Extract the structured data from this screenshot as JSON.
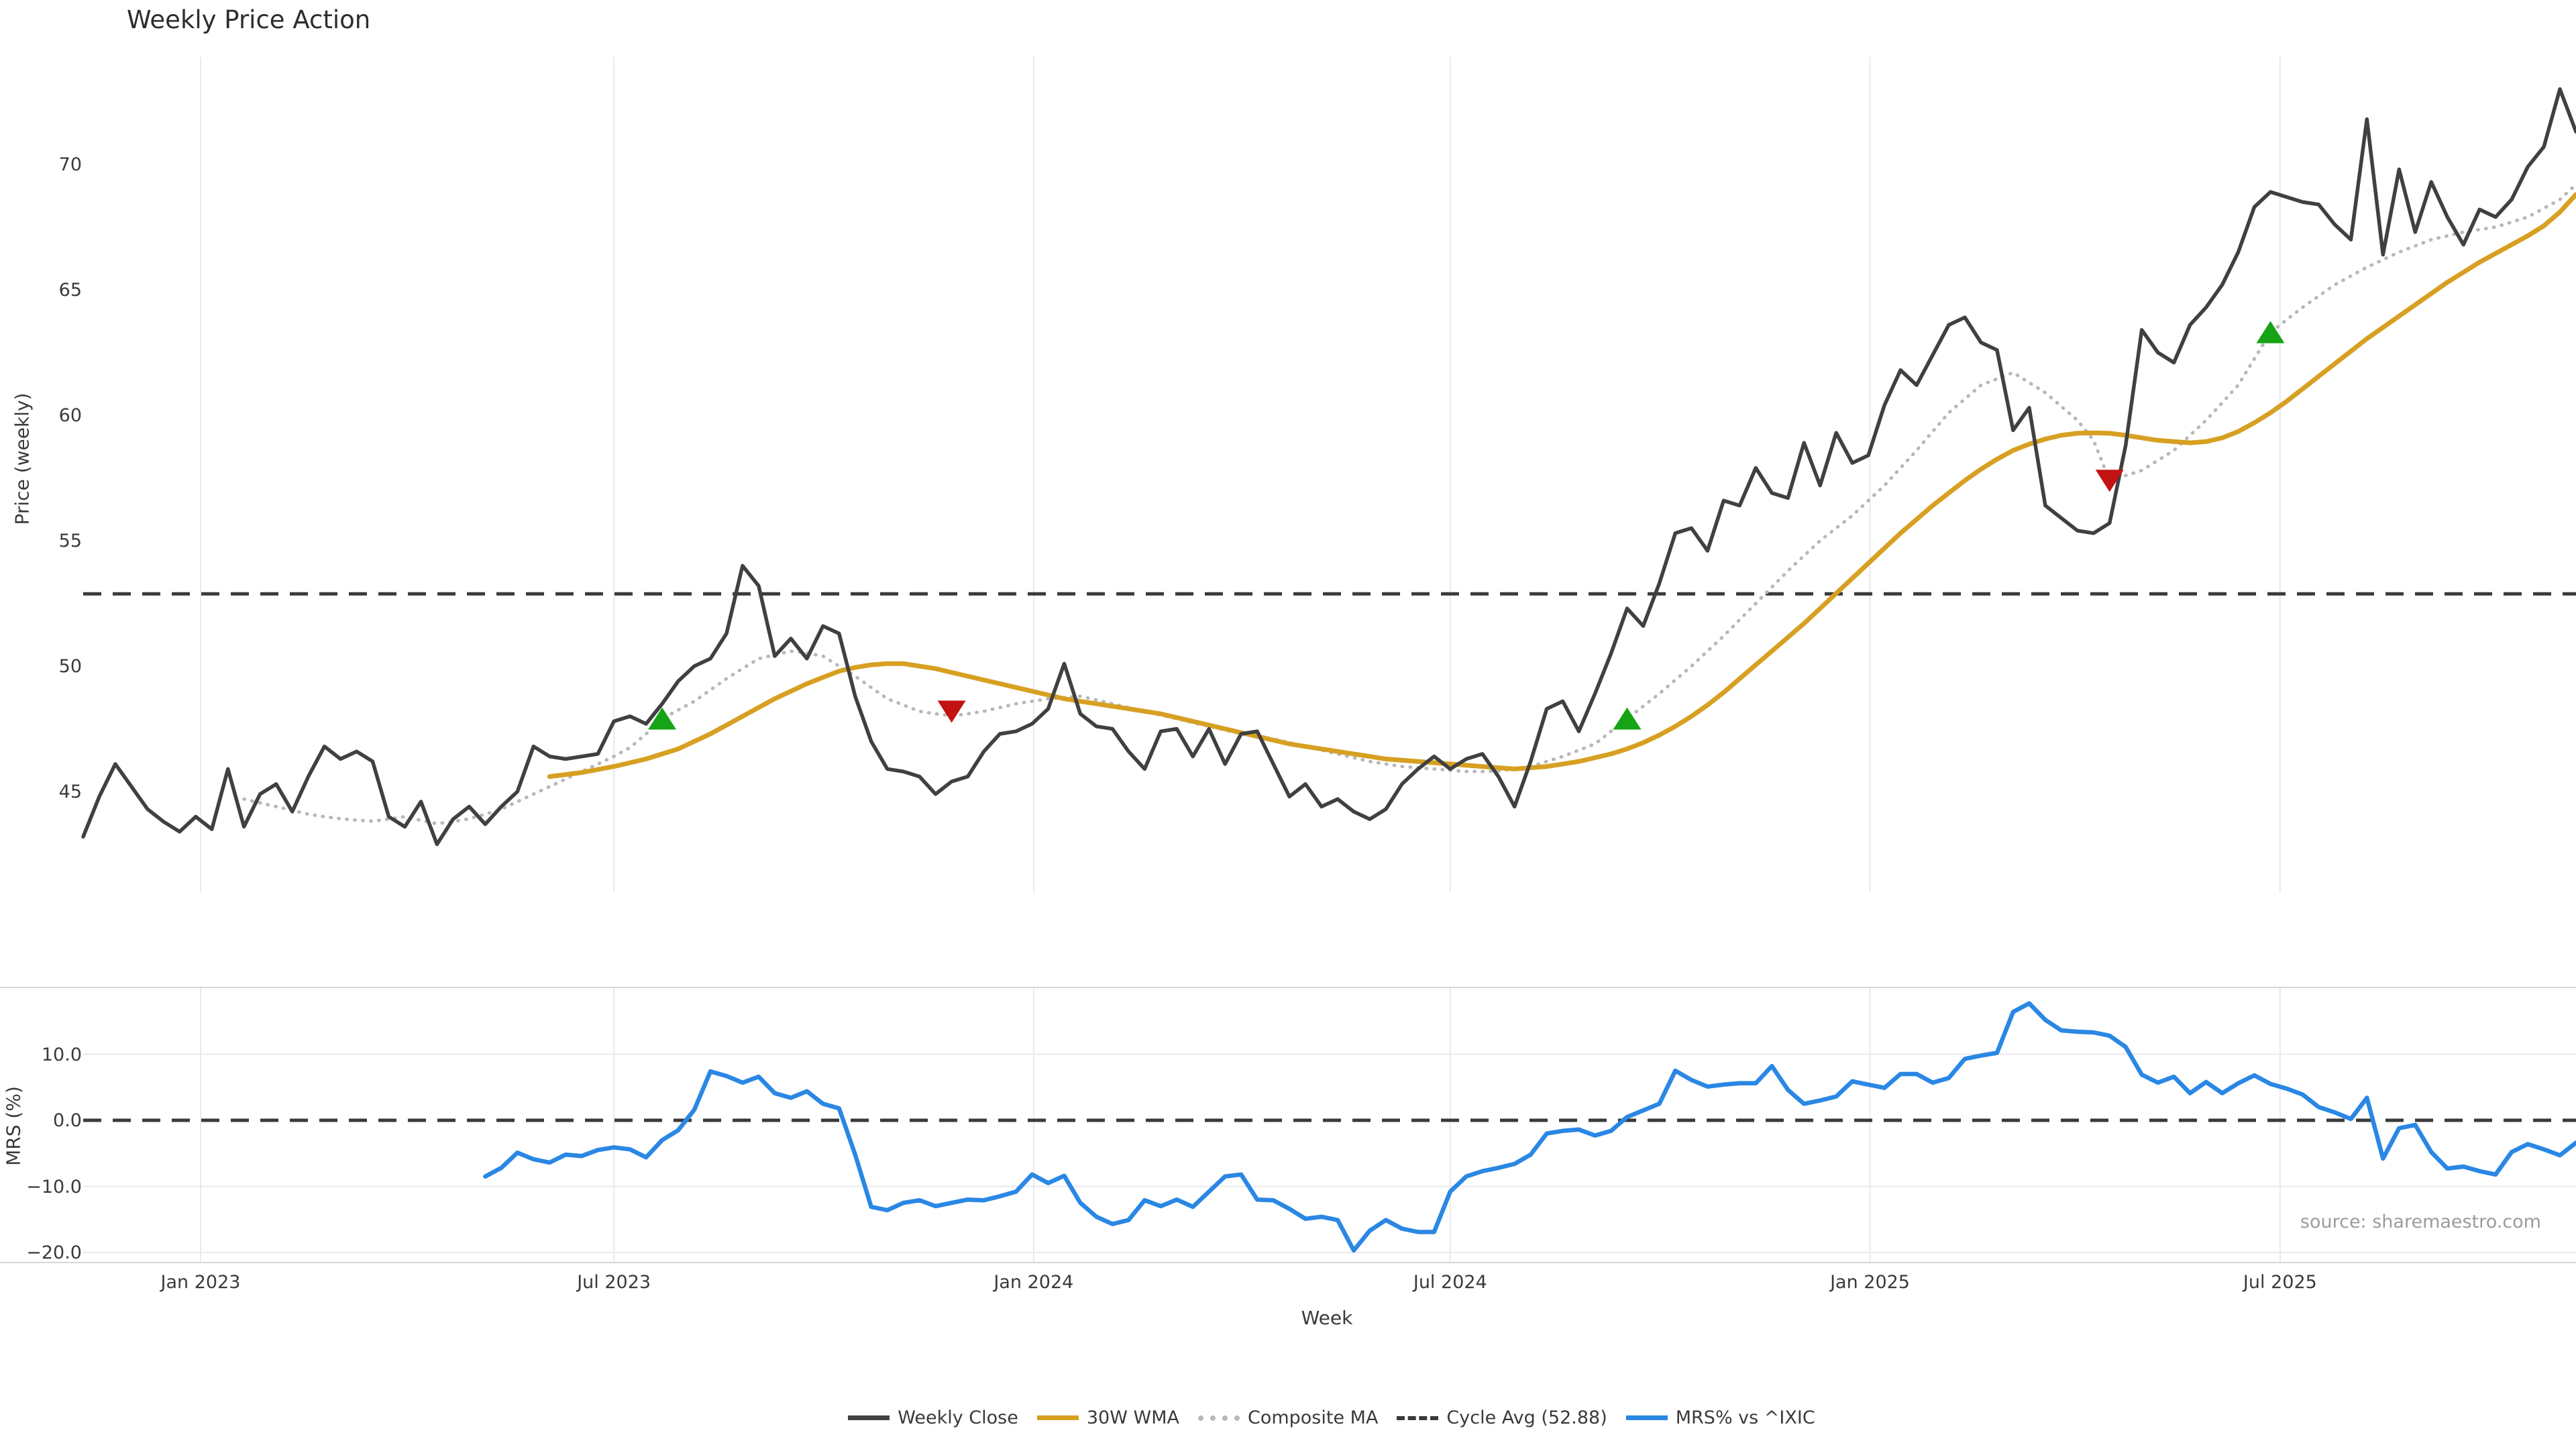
{
  "title": "Weekly Price Action",
  "source": "source: sharemaestro.com",
  "colors": {
    "close": "#404040",
    "wma": "#d7a022",
    "composite": "#b8b8b8",
    "cycle_avg": "#3a3a3a",
    "mrs": "#2a87e4",
    "buy_marker": "#16a316",
    "sell_marker": "#c31212",
    "grid": "#e9e9ef",
    "spine": "#d5d5dc",
    "background": "#ffffff"
  },
  "legend": {
    "items": [
      {
        "label": "Weekly Close",
        "color": "#404040",
        "style": "solid"
      },
      {
        "label": "30W WMA",
        "color": "#d7a022",
        "style": "solid"
      },
      {
        "label": "Composite MA",
        "color": "#b8b8b8",
        "style": "dotted"
      },
      {
        "label": "Cycle Avg (52.88)",
        "color": "#3a3a3a",
        "style": "dashed"
      },
      {
        "label": "MRS% vs ^IXIC",
        "color": "#2a87e4",
        "style": "solid"
      }
    ]
  },
  "chart_data": [
    {
      "type": "line",
      "panel": "price",
      "title": "Weekly Price Action",
      "xlabel": "Week",
      "ylabel": "Price (weekly)",
      "x_unit": "weekly index, week 0 = first plotted week (mid-Nov 2022)",
      "x_ticks": [
        {
          "label": "Jan 2023",
          "i": 7.3
        },
        {
          "label": "Jul 2023",
          "i": 33.0
        },
        {
          "label": "Jan 2024",
          "i": 59.1
        },
        {
          "label": "Jul 2024",
          "i": 85.0
        },
        {
          "label": "Jan 2025",
          "i": 111.1
        },
        {
          "label": "Jul 2025",
          "i": 136.6
        }
      ],
      "y_ticks": [
        45,
        50,
        55,
        60,
        65,
        70
      ],
      "ylim": [
        41.0,
        74.3
      ],
      "grid": "vertical gridlines at each Jan/Jul",
      "legend_position": "bottom center, shared",
      "cycle_avg": 52.88,
      "series": [
        {
          "name": "Weekly Close",
          "style": "solid",
          "color": "#404040",
          "start": 0,
          "values": [
            43.2,
            44.8,
            46.1,
            45.2,
            44.3,
            43.8,
            43.4,
            44.0,
            43.5,
            45.9,
            43.6,
            44.9,
            45.3,
            44.2,
            45.6,
            46.8,
            46.3,
            46.6,
            46.2,
            44.0,
            43.6,
            44.6,
            42.9,
            43.9,
            44.4,
            43.7,
            44.4,
            45.0,
            46.8,
            46.4,
            46.3,
            46.4,
            46.5,
            47.8,
            48.0,
            47.7,
            48.5,
            49.4,
            50.0,
            50.3,
            51.3,
            54.0,
            53.2,
            50.4,
            51.1,
            50.3,
            51.6,
            51.3,
            48.8,
            47.0,
            45.9,
            45.8,
            45.6,
            44.9,
            45.4,
            45.6,
            46.6,
            47.3,
            47.4,
            47.7,
            48.3,
            50.1,
            48.1,
            47.6,
            47.5,
            46.6,
            45.9,
            47.4,
            47.5,
            46.4,
            47.5,
            46.1,
            47.3,
            47.4,
            46.1,
            44.8,
            45.3,
            44.4,
            44.7,
            44.2,
            43.9,
            44.3,
            45.3,
            45.9,
            46.4,
            45.9,
            46.3,
            46.5,
            45.6,
            44.4,
            46.2,
            48.3,
            48.6,
            47.4,
            48.9,
            50.5,
            52.3,
            51.6,
            53.3,
            55.3,
            55.5,
            54.6,
            56.6,
            56.4,
            57.9,
            56.9,
            56.7,
            58.9,
            57.2,
            59.3,
            58.1,
            58.4,
            60.4,
            61.8,
            61.2,
            62.4,
            63.6,
            63.9,
            62.9,
            62.6,
            59.4,
            60.3,
            56.4,
            55.9,
            55.4,
            55.3,
            55.7,
            58.8,
            63.4,
            62.5,
            62.1,
            63.6,
            64.3,
            65.2,
            66.5,
            68.3,
            68.9,
            68.7,
            68.5,
            68.4,
            67.6,
            67.0,
            71.8,
            66.4,
            69.8,
            67.3,
            69.3,
            67.9,
            66.8,
            68.2,
            67.9,
            68.6,
            69.9,
            70.7,
            73.0,
            71.3
          ]
        },
        {
          "name": "30W WMA",
          "style": "solid",
          "color": "#d7a022",
          "start": 29,
          "values": [
            45.6,
            45.68,
            45.76,
            45.88,
            46.0,
            46.15,
            46.3,
            46.5,
            46.7,
            47.0,
            47.3,
            47.65,
            48.0,
            48.35,
            48.7,
            49.0,
            49.3,
            49.55,
            49.8,
            49.95,
            50.05,
            50.1,
            50.1,
            50.0,
            49.9,
            49.75,
            49.6,
            49.45,
            49.3,
            49.15,
            49.0,
            48.85,
            48.7,
            48.6,
            48.5,
            48.4,
            48.3,
            48.2,
            48.1,
            47.95,
            47.8,
            47.65,
            47.5,
            47.35,
            47.2,
            47.05,
            46.9,
            46.8,
            46.7,
            46.6,
            46.5,
            46.4,
            46.3,
            46.25,
            46.2,
            46.15,
            46.1,
            46.05,
            46.0,
            45.95,
            45.9,
            45.95,
            46.0,
            46.1,
            46.2,
            46.35,
            46.5,
            46.7,
            46.95,
            47.25,
            47.6,
            48.0,
            48.45,
            48.95,
            49.5,
            50.05,
            50.6,
            51.15,
            51.7,
            52.3,
            52.9,
            53.5,
            54.1,
            54.7,
            55.3,
            55.85,
            56.4,
            56.9,
            57.4,
            57.85,
            58.25,
            58.6,
            58.85,
            59.05,
            59.2,
            59.28,
            59.3,
            59.28,
            59.2,
            59.1,
            59.0,
            58.95,
            58.9,
            58.95,
            59.1,
            59.35,
            59.7,
            60.1,
            60.55,
            61.05,
            61.55,
            62.05,
            62.55,
            63.05,
            63.5,
            63.95,
            64.4,
            64.85,
            65.3,
            65.7,
            66.1,
            66.45,
            66.8,
            67.15,
            67.55,
            68.1,
            68.8
          ]
        },
        {
          "name": "Composite MA",
          "style": "dotted",
          "color": "#b8b8b8",
          "start": 10,
          "values": [
            44.7,
            44.55,
            44.4,
            44.25,
            44.1,
            44.0,
            43.92,
            43.86,
            43.82,
            43.9,
            44.0,
            43.85,
            43.72,
            43.8,
            43.92,
            44.1,
            44.3,
            44.6,
            44.9,
            45.2,
            45.5,
            45.8,
            46.1,
            46.4,
            46.75,
            47.3,
            47.9,
            48.25,
            48.6,
            49.05,
            49.5,
            49.9,
            50.3,
            50.45,
            50.6,
            50.52,
            50.4,
            50.0,
            49.6,
            49.15,
            48.7,
            48.45,
            48.2,
            48.1,
            48.02,
            48.1,
            48.2,
            48.35,
            48.5,
            48.6,
            48.7,
            48.75,
            48.8,
            48.65,
            48.5,
            48.35,
            48.2,
            48.05,
            47.9,
            47.75,
            47.6,
            47.45,
            47.3,
            47.2,
            47.1,
            46.95,
            46.8,
            46.65,
            46.5,
            46.35,
            46.2,
            46.1,
            46.0,
            45.95,
            45.9,
            45.85,
            45.8,
            45.8,
            45.82,
            45.9,
            46.0,
            46.2,
            46.4,
            46.65,
            46.9,
            47.4,
            47.9,
            48.4,
            48.9,
            49.45,
            50.0,
            50.6,
            51.2,
            51.85,
            52.5,
            53.15,
            53.8,
            54.4,
            55.0,
            55.5,
            56.0,
            56.6,
            57.2,
            57.9,
            58.6,
            59.35,
            60.1,
            60.65,
            61.2,
            61.45,
            61.7,
            61.3,
            60.9,
            60.35,
            59.8,
            59.0,
            57.4,
            57.6,
            57.8,
            58.2,
            58.6,
            59.2,
            59.8,
            60.5,
            61.2,
            62.25,
            63.3,
            63.8,
            64.3,
            64.75,
            65.2,
            65.55,
            65.9,
            66.2,
            66.5,
            66.75,
            67.0,
            67.15,
            67.3,
            67.4,
            67.5,
            67.7,
            67.9,
            68.25,
            68.6,
            69.2
          ]
        },
        {
          "name": "Cycle Avg",
          "style": "dashed",
          "color": "#3a3a3a",
          "constant": 52.88
        }
      ],
      "markers": {
        "buy": {
          "shape": "triangle-up",
          "color": "#16a316",
          "points": [
            {
              "i": 36,
              "v": 47.9
            },
            {
              "i": 96,
              "v": 47.9
            },
            {
              "i": 136,
              "v": 63.3
            }
          ]
        },
        "sell": {
          "shape": "triangle-down",
          "color": "#c31212",
          "points": [
            {
              "i": 54,
              "v": 48.2
            },
            {
              "i": 126,
              "v": 57.4
            }
          ]
        }
      }
    },
    {
      "type": "line",
      "panel": "relative-strength",
      "xlabel": "Week",
      "ylabel": "MRS (%)",
      "y_ticks": [
        {
          "label": "10.0",
          "v": 10
        },
        {
          "label": "0.0",
          "v": 0
        },
        {
          "label": "−10.0",
          "v": -10
        },
        {
          "label": "−20.0",
          "v": -20
        }
      ],
      "ylim": [
        -21.5,
        20.1
      ],
      "zero_line": {
        "value": 0.0,
        "style": "dashed",
        "color": "#3a3a3a"
      },
      "series": [
        {
          "name": "MRS% vs ^IXIC",
          "style": "solid",
          "color": "#2a87e4",
          "start": 25,
          "values": [
            -8.5,
            -7.2,
            -4.9,
            -5.9,
            -6.4,
            -5.2,
            -5.4,
            -4.5,
            -4.1,
            -4.4,
            -5.6,
            -3.0,
            -1.5,
            1.6,
            7.4,
            6.7,
            5.7,
            6.6,
            4.1,
            3.4,
            4.4,
            2.5,
            1.8,
            -5.2,
            -13.1,
            -13.6,
            -12.5,
            -12.1,
            -13.0,
            -12.5,
            -12.0,
            -12.1,
            -11.5,
            -10.8,
            -8.2,
            -9.5,
            -8.4,
            -12.5,
            -14.6,
            -15.7,
            -15.1,
            -12.1,
            -13.0,
            -12.0,
            -13.1,
            -10.8,
            -8.5,
            -8.2,
            -12.0,
            -12.1,
            -13.4,
            -14.9,
            -14.6,
            -15.1,
            -19.7,
            -16.7,
            -15.1,
            -16.4,
            -16.9,
            -16.9,
            -10.8,
            -8.5,
            -7.7,
            -7.2,
            -6.6,
            -5.2,
            -2.0,
            -1.6,
            -1.4,
            -2.3,
            -1.6,
            0.5,
            1.5,
            2.5,
            7.5,
            6.1,
            5.1,
            5.4,
            5.6,
            5.6,
            8.2,
            4.6,
            2.5,
            3.0,
            3.6,
            5.9,
            5.4,
            4.9,
            7.0,
            7.0,
            5.7,
            6.4,
            9.3,
            9.8,
            10.2,
            16.4,
            17.7,
            15.2,
            13.6,
            13.4,
            13.3,
            12.8,
            11.1,
            6.9,
            5.7,
            6.6,
            4.1,
            5.8,
            4.1,
            5.6,
            6.8,
            5.5,
            4.8,
            3.9,
            2.0,
            1.2,
            0.2,
            3.4,
            -5.8,
            -1.2,
            -0.7,
            -4.8,
            -7.3,
            -7.0,
            -7.7,
            -8.2,
            -4.8,
            -3.6,
            -4.4,
            -5.3,
            -3.4
          ]
        }
      ]
    }
  ]
}
